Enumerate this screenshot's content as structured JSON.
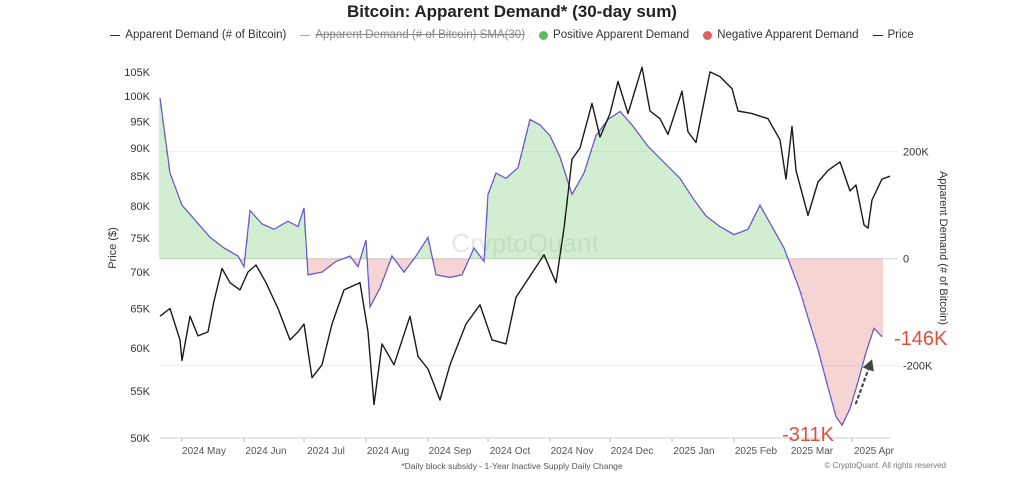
{
  "chart_data": {
    "type": "bar+line",
    "title": "Bitcoin: Apparent Demand* (30-day sum)",
    "footnote": "*Daily block subsidy - 1-Year Inactive Supply Daily Change",
    "credit": "© CryptoQuant. All rights reserved",
    "watermark": "CryptoQuant",
    "legend": [
      {
        "label": "Apparent Demand (# of Bitcoin)",
        "marker": "line",
        "color": "#333333",
        "struck": false
      },
      {
        "label": "Apparent Demand (# of Bitcoin) SMA(30)",
        "marker": "line",
        "color": "#aaaaaa",
        "struck": true
      },
      {
        "label": "Positive Apparent Demand",
        "marker": "dot",
        "color": "#5bbd5b",
        "struck": false
      },
      {
        "label": "Negative Apparent Demand",
        "marker": "dot",
        "color": "#e06060",
        "struck": false
      },
      {
        "label": "Price",
        "marker": "line",
        "color": "#222222",
        "struck": false
      }
    ],
    "left_axis": {
      "label": "Price ($)",
      "scale": "log",
      "range": [
        50000,
        108000
      ],
      "ticks": [
        {
          "v": 50000,
          "t": "50K"
        },
        {
          "v": 55000,
          "t": "55K"
        },
        {
          "v": 60000,
          "t": "60K"
        },
        {
          "v": 65000,
          "t": "65K"
        },
        {
          "v": 70000,
          "t": "70K"
        },
        {
          "v": 75000,
          "t": "75K"
        },
        {
          "v": 80000,
          "t": "80K"
        },
        {
          "v": 85000,
          "t": "85K"
        },
        {
          "v": 90000,
          "t": "90K"
        },
        {
          "v": 95000,
          "t": "95K"
        },
        {
          "v": 100000,
          "t": "100K"
        },
        {
          "v": 105000,
          "t": "105K"
        }
      ]
    },
    "right_axis": {
      "label": "Apparent Demand (# of Bitcoin)",
      "range": [
        -335000,
        375000
      ],
      "ticks": [
        {
          "v": 200000,
          "t": "200K"
        },
        {
          "v": 0,
          "t": "0"
        },
        {
          "v": -200000,
          "t": "-200K"
        }
      ]
    },
    "x_axis": {
      "start": "2024-04-20",
      "end": "2025-04-20",
      "ticks": [
        {
          "d": "2024-05-01",
          "t": "2024 May"
        },
        {
          "d": "2024-06-01",
          "t": "2024 Jun"
        },
        {
          "d": "2024-07-01",
          "t": "2024 Jul"
        },
        {
          "d": "2024-08-01",
          "t": "2024 Aug"
        },
        {
          "d": "2024-09-01",
          "t": "2024 Sep"
        },
        {
          "d": "2024-10-01",
          "t": "2024 Oct"
        },
        {
          "d": "2024-11-01",
          "t": "2024 Nov"
        },
        {
          "d": "2024-12-01",
          "t": "2024 Dec"
        },
        {
          "d": "2025-01-01",
          "t": "2025 Jan"
        },
        {
          "d": "2025-02-01",
          "t": "2025 Feb"
        },
        {
          "d": "2025-03-01",
          "t": "2025 Mar"
        },
        {
          "d": "2025-04-01",
          "t": "2025 Apr"
        }
      ]
    },
    "demand_series": {
      "name": "Apparent Demand (# of Bitcoin)",
      "points": [
        [
          "2024-04-20",
          300000
        ],
        [
          "2024-04-25",
          160000
        ],
        [
          "2024-05-01",
          100000
        ],
        [
          "2024-05-08",
          70000
        ],
        [
          "2024-05-15",
          40000
        ],
        [
          "2024-05-22",
          20000
        ],
        [
          "2024-05-29",
          5000
        ],
        [
          "2024-06-01",
          -15000
        ],
        [
          "2024-06-04",
          90000
        ],
        [
          "2024-06-10",
          65000
        ],
        [
          "2024-06-16",
          55000
        ],
        [
          "2024-06-23",
          70000
        ],
        [
          "2024-06-28",
          60000
        ],
        [
          "2024-07-01",
          95000
        ],
        [
          "2024-07-03",
          -30000
        ],
        [
          "2024-07-10",
          -25000
        ],
        [
          "2024-07-17",
          -5000
        ],
        [
          "2024-07-24",
          5000
        ],
        [
          "2024-07-28",
          -15000
        ],
        [
          "2024-08-01",
          35000
        ],
        [
          "2024-08-03",
          -90000
        ],
        [
          "2024-08-08",
          -55000
        ],
        [
          "2024-08-14",
          5000
        ],
        [
          "2024-08-20",
          -25000
        ],
        [
          "2024-08-26",
          5000
        ],
        [
          "2024-09-01",
          40000
        ],
        [
          "2024-09-05",
          -30000
        ],
        [
          "2024-09-12",
          -35000
        ],
        [
          "2024-09-18",
          -30000
        ],
        [
          "2024-09-24",
          20000
        ],
        [
          "2024-09-29",
          -5000
        ],
        [
          "2024-10-01",
          120000
        ],
        [
          "2024-10-05",
          160000
        ],
        [
          "2024-10-10",
          150000
        ],
        [
          "2024-10-16",
          170000
        ],
        [
          "2024-10-22",
          260000
        ],
        [
          "2024-10-27",
          250000
        ],
        [
          "2024-11-01",
          230000
        ],
        [
          "2024-11-06",
          190000
        ],
        [
          "2024-11-12",
          120000
        ],
        [
          "2024-11-18",
          160000
        ],
        [
          "2024-11-24",
          230000
        ],
        [
          "2024-11-30",
          260000
        ],
        [
          "2024-12-06",
          275000
        ],
        [
          "2024-12-12",
          250000
        ],
        [
          "2024-12-20",
          210000
        ],
        [
          "2024-12-28",
          180000
        ],
        [
          "2025-01-05",
          150000
        ],
        [
          "2025-01-12",
          110000
        ],
        [
          "2025-01-18",
          80000
        ],
        [
          "2025-01-25",
          60000
        ],
        [
          "2025-02-01",
          45000
        ],
        [
          "2025-02-08",
          55000
        ],
        [
          "2025-02-14",
          100000
        ],
        [
          "2025-02-20",
          60000
        ],
        [
          "2025-02-26",
          20000
        ],
        [
          "2025-03-01",
          -10000
        ],
        [
          "2025-03-06",
          -60000
        ],
        [
          "2025-03-10",
          -110000
        ],
        [
          "2025-03-15",
          -170000
        ],
        [
          "2025-03-20",
          -240000
        ],
        [
          "2025-03-24",
          -295000
        ],
        [
          "2025-03-27",
          -311000
        ],
        [
          "2025-03-31",
          -280000
        ],
        [
          "2025-04-04",
          -230000
        ],
        [
          "2025-04-08",
          -175000
        ],
        [
          "2025-04-12",
          -130000
        ],
        [
          "2025-04-16",
          -146000
        ]
      ]
    },
    "price_series": {
      "name": "Price",
      "points": [
        [
          "2024-04-20",
          64000
        ],
        [
          "2024-04-25",
          65000
        ],
        [
          "2024-04-30",
          61000
        ],
        [
          "2024-05-01",
          58500
        ],
        [
          "2024-05-05",
          64000
        ],
        [
          "2024-05-09",
          61500
        ],
        [
          "2024-05-14",
          62000
        ],
        [
          "2024-05-17",
          66000
        ],
        [
          "2024-05-21",
          70500
        ],
        [
          "2024-05-25",
          68500
        ],
        [
          "2024-05-30",
          67500
        ],
        [
          "2024-06-03",
          70000
        ],
        [
          "2024-06-07",
          71000
        ],
        [
          "2024-06-12",
          68500
        ],
        [
          "2024-06-18",
          65000
        ],
        [
          "2024-06-24",
          61000
        ],
        [
          "2024-06-28",
          62000
        ],
        [
          "2024-07-01",
          63000
        ],
        [
          "2024-07-05",
          56500
        ],
        [
          "2024-07-10",
          58000
        ],
        [
          "2024-07-15",
          63000
        ],
        [
          "2024-07-21",
          67500
        ],
        [
          "2024-07-29",
          68500
        ],
        [
          "2024-08-02",
          62000
        ],
        [
          "2024-08-05",
          53500
        ],
        [
          "2024-08-09",
          60500
        ],
        [
          "2024-08-15",
          58000
        ],
        [
          "2024-08-23",
          64000
        ],
        [
          "2024-08-27",
          59000
        ],
        [
          "2024-09-01",
          57500
        ],
        [
          "2024-09-07",
          54000
        ],
        [
          "2024-09-12",
          58000
        ],
        [
          "2024-09-20",
          63000
        ],
        [
          "2024-09-27",
          65500
        ],
        [
          "2024-10-03",
          61000
        ],
        [
          "2024-10-10",
          60500
        ],
        [
          "2024-10-15",
          66500
        ],
        [
          "2024-10-21",
          69000
        ],
        [
          "2024-10-29",
          72500
        ],
        [
          "2024-11-04",
          68500
        ],
        [
          "2024-11-08",
          76500
        ],
        [
          "2024-11-12",
          88000
        ],
        [
          "2024-11-16",
          90000
        ],
        [
          "2024-11-22",
          98500
        ],
        [
          "2024-11-26",
          92000
        ],
        [
          "2024-12-01",
          96500
        ],
        [
          "2024-12-05",
          103000
        ],
        [
          "2024-12-10",
          96500
        ],
        [
          "2024-12-17",
          106000
        ],
        [
          "2024-12-21",
          97000
        ],
        [
          "2024-12-26",
          95500
        ],
        [
          "2024-12-30",
          92500
        ],
        [
          "2025-01-06",
          101000
        ],
        [
          "2025-01-09",
          93000
        ],
        [
          "2025-01-13",
          91000
        ],
        [
          "2025-01-20",
          105000
        ],
        [
          "2025-01-25",
          104000
        ],
        [
          "2025-01-31",
          101500
        ],
        [
          "2025-02-03",
          97000
        ],
        [
          "2025-02-10",
          96500
        ],
        [
          "2025-02-18",
          95500
        ],
        [
          "2025-02-24",
          91500
        ],
        [
          "2025-02-27",
          84500
        ],
        [
          "2025-03-02",
          94000
        ],
        [
          "2025-03-04",
          86000
        ],
        [
          "2025-03-10",
          78500
        ],
        [
          "2025-03-15",
          84000
        ],
        [
          "2025-03-20",
          86000
        ],
        [
          "2025-03-26",
          87500
        ],
        [
          "2025-03-31",
          82500
        ],
        [
          "2025-04-03",
          83500
        ],
        [
          "2025-04-07",
          77000
        ],
        [
          "2025-04-09",
          76500
        ],
        [
          "2025-04-11",
          81000
        ],
        [
          "2025-04-16",
          84500
        ],
        [
          "2025-04-20",
          85000
        ]
      ]
    },
    "annotations": [
      {
        "text": "-146K",
        "date": "2025-04-16",
        "value": -146000,
        "color": "#e0503a"
      },
      {
        "text": "-311K",
        "date": "2025-03-27",
        "value": -311000,
        "color": "#e0503a"
      }
    ]
  }
}
